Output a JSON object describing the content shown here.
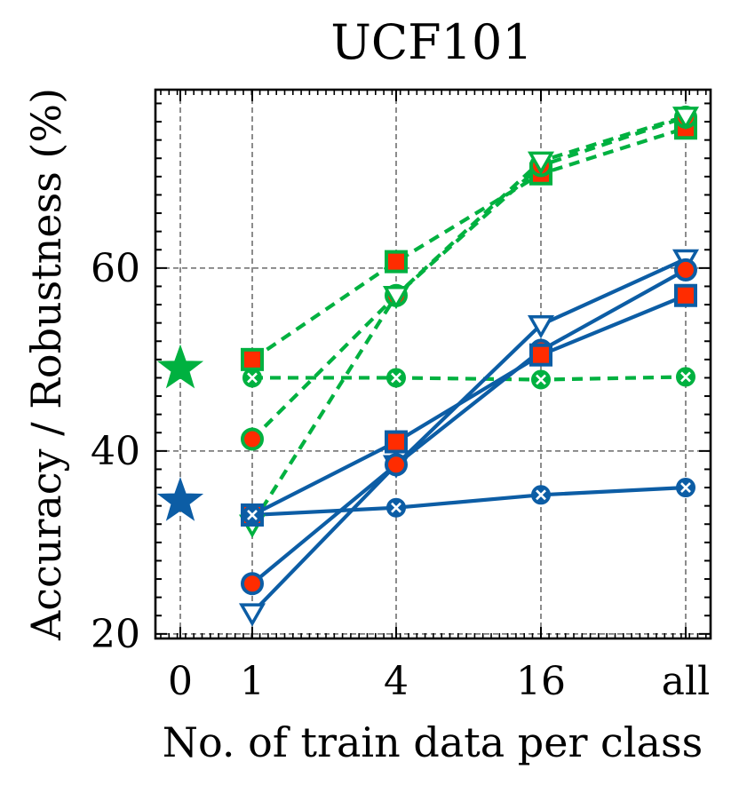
{
  "chart_data": {
    "type": "line",
    "title": "UCF101",
    "xlabel": "No. of train data per class",
    "ylabel": "Accuracy / Robustness (%)",
    "categories": [
      "0",
      "1",
      "4",
      "16",
      "all"
    ],
    "ylim": [
      19.5,
      79.5
    ],
    "yticks": [
      20,
      40,
      60
    ],
    "grid": true,
    "colors": {
      "robustness": "#00b140",
      "accuracy": "#0c5da5",
      "marker_fill": "#ff2c00"
    },
    "zero_shot": [
      {
        "name": "zero-shot robustness",
        "group": "robustness",
        "value": 49
      },
      {
        "name": "zero-shot accuracy",
        "group": "accuracy",
        "value": 34.5
      }
    ],
    "series": [
      {
        "name": "robustness-square",
        "group": "robustness",
        "marker": "square",
        "linestyle": "dashed",
        "values": [
          null,
          50,
          60.7,
          70.3,
          75.3
        ]
      },
      {
        "name": "robustness-circle",
        "group": "robustness",
        "marker": "circle",
        "linestyle": "dashed",
        "values": [
          null,
          41.3,
          57,
          71.2,
          76.5
        ]
      },
      {
        "name": "robustness-triangle",
        "group": "robustness",
        "marker": "triangle",
        "linestyle": "dashed",
        "values": [
          null,
          32,
          57,
          71.7,
          76.6
        ]
      },
      {
        "name": "robustness-x",
        "group": "robustness",
        "marker": "x",
        "linestyle": "dashed",
        "values": [
          null,
          48,
          48,
          47.8,
          48.1
        ]
      },
      {
        "name": "accuracy-triangle",
        "group": "accuracy",
        "marker": "triangle",
        "linestyle": "solid",
        "values": [
          null,
          22.3,
          38.5,
          53.8,
          61
        ]
      },
      {
        "name": "accuracy-circle",
        "group": "accuracy",
        "marker": "circle",
        "linestyle": "solid",
        "values": [
          null,
          25.5,
          38.5,
          51,
          59.8
        ]
      },
      {
        "name": "accuracy-square",
        "group": "accuracy",
        "marker": "square",
        "linestyle": "solid",
        "values": [
          null,
          33,
          41,
          50.5,
          57
        ]
      },
      {
        "name": "accuracy-x",
        "group": "accuracy",
        "marker": "x",
        "linestyle": "solid",
        "values": [
          null,
          33,
          33.8,
          35.2,
          36
        ]
      }
    ]
  }
}
